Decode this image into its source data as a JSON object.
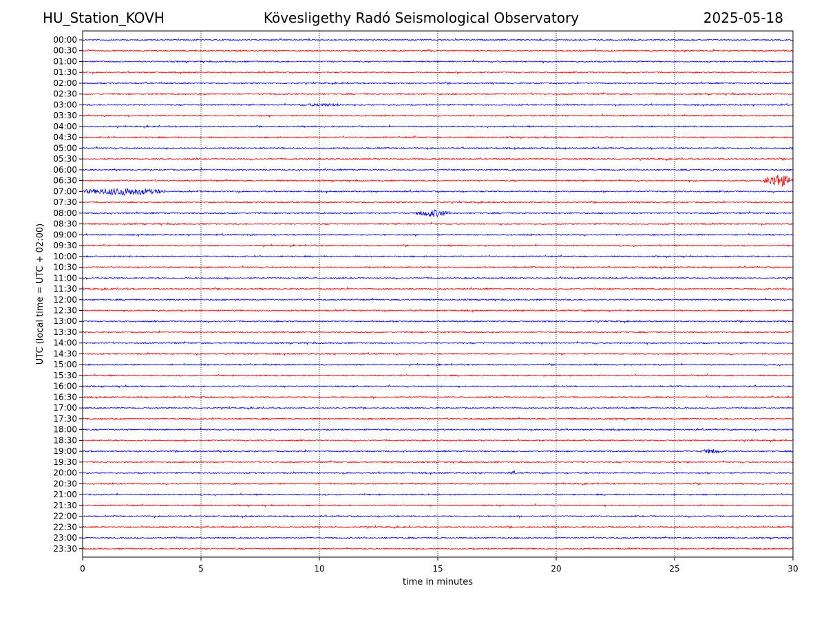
{
  "header": {
    "station": "HU_Station_KOVH",
    "title": "Kövesligethy Radó Seismological Observatory",
    "date": "2025-05-18"
  },
  "chart_data": {
    "type": "line",
    "xlabel": "time in minutes",
    "ylabel": "UTC (local time = UTC + 02:00)",
    "xlim": [
      0,
      30
    ],
    "xticks": [
      0,
      5,
      10,
      15,
      20,
      25,
      30
    ],
    "grid": "vertical dotted lines at x ticks",
    "colors": [
      "#0000ff",
      "#ff0000"
    ],
    "rows": [
      "00:00",
      "00:30",
      "01:00",
      "01:30",
      "02:00",
      "02:30",
      "03:00",
      "03:30",
      "04:00",
      "04:30",
      "05:00",
      "05:30",
      "06:00",
      "06:30",
      "07:00",
      "07:30",
      "08:00",
      "08:30",
      "09:00",
      "09:30",
      "10:00",
      "10:30",
      "11:00",
      "11:30",
      "12:00",
      "12:30",
      "13:00",
      "13:30",
      "14:00",
      "14:30",
      "15:00",
      "15:30",
      "16:00",
      "16:30",
      "17:00",
      "17:30",
      "18:00",
      "18:30",
      "19:00",
      "19:30",
      "20:00",
      "20:30",
      "21:00",
      "21:30",
      "22:00",
      "22:30",
      "23:00",
      "23:30"
    ],
    "events": [
      {
        "row": "00:30",
        "start": 14.4,
        "end": 14.8,
        "amp": 2.5
      },
      {
        "row": "03:00",
        "start": 9.0,
        "end": 11.3,
        "amp": 2.5
      },
      {
        "row": "06:30",
        "start": 28.8,
        "end": 30.0,
        "amp": 10
      },
      {
        "row": "07:00",
        "start": 0.0,
        "end": 3.5,
        "amp": 6
      },
      {
        "row": "08:00",
        "start": 14.1,
        "end": 15.5,
        "amp": 6
      },
      {
        "row": "19:00",
        "start": 26.1,
        "end": 27.0,
        "amp": 4
      },
      {
        "row": "20:00",
        "start": 18.1,
        "end": 18.3,
        "amp": 4
      }
    ]
  }
}
